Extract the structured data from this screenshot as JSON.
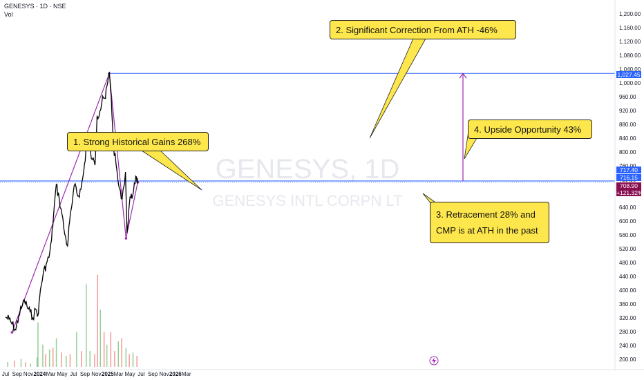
{
  "header": {
    "symbol": "GENESYS · 1D · NSE",
    "vol_label": "Vol"
  },
  "watermark": {
    "ticker": "GENESYS, 1D",
    "name": "GENESYS INTL CORPN LT"
  },
  "colors": {
    "price_line": "#000000",
    "trend_line": "#9c27b0",
    "hline": "#2962ff",
    "callout_bg": "#fde74c",
    "vol_up": "#4caf50",
    "vol_down": "#ef5350",
    "last_tag": "#880e4f",
    "blue_tag": "#2962ff"
  },
  "annotations": {
    "a1": "1. Strong Historical Gains 268%",
    "a2": "2. Significant Correction From ATH  -46%",
    "a3_line1": "3. Retracement  28% and",
    "a3_line2": "CMP is at ATH in the past",
    "a4": "4. Upside Opportunity 43%"
  },
  "price_tags": {
    "ath": "1,027.45",
    "t1": "717.40",
    "t2": "716.15",
    "last": "708.90",
    "change": "+121.32%"
  },
  "chart_data": {
    "type": "line",
    "y_axis_ticks": [
      1200,
      1160,
      1120,
      1080,
      1040,
      1000,
      960,
      920,
      880,
      840,
      800,
      760,
      720,
      680,
      640,
      600,
      560,
      520,
      480,
      440,
      400,
      360,
      320,
      280,
      240,
      200
    ],
    "y_tick_labels": [
      "1,200.00",
      "1,160.00",
      "1,120.00",
      "1,080.00",
      "1,040.00",
      "1,000.00",
      "960.00",
      "920.00",
      "880.00",
      "840.00",
      "800.00",
      "760.00",
      "720.00",
      "680.00",
      "640.00",
      "600.00",
      "560.00",
      "520.00",
      "480.00",
      "440.00",
      "400.00",
      "360.00",
      "320.00",
      "280.00",
      "240.00",
      "200.00"
    ],
    "ylim": [
      190,
      1225
    ],
    "x_tick_labels": [
      "Jul",
      "Sep",
      "Nov",
      "2024",
      "Mar",
      "May",
      "Jul",
      "Sep",
      "Nov",
      "2025",
      "Mar",
      "May",
      "Jul",
      "Sep",
      "Nov",
      "2026",
      "Mar"
    ],
    "series": [
      {
        "x": [
          "2023-07-01",
          "2023-07-20",
          "2023-08-05",
          "2023-08-25",
          "2023-09-10",
          "2023-09-25",
          "2023-10-10",
          "2023-10-25",
          "2023-11-10",
          "2023-11-25",
          "2023-12-10",
          "2023-12-25",
          "2024-01-05",
          "2024-01-20",
          "2024-02-05",
          "2024-02-20",
          "2024-03-05",
          "2024-03-15",
          "2024-03-30",
          "2024-04-15",
          "2024-04-30",
          "2024-05-15",
          "2024-05-30",
          "2024-06-10",
          "2024-06-25",
          "2024-07-10",
          "2024-07-25",
          "2024-08-10",
          "2024-08-25",
          "2024-09-10",
          "2024-09-25",
          "2024-10-10",
          "2024-10-25",
          "2024-11-05",
          "2024-11-20",
          "2024-12-05",
          "2024-12-20",
          "2025-01-01",
          "2025-01-10",
          "2025-01-20",
          "2025-02-01",
          "2025-02-15",
          "2025-03-01",
          "2025-03-15",
          "2025-03-30",
          "2025-04-07",
          "2025-04-15",
          "2025-04-25",
          "2025-05-05",
          "2025-05-15",
          "2025-05-25",
          "2025-06-05",
          "2025-06-12"
        ],
        "values": [
          322,
          316,
          302,
          285,
          325,
          348,
          372,
          352,
          338,
          320,
          345,
          332,
          402,
          448,
          475,
          495,
          545,
          612,
          705,
          665,
          620,
          562,
          528,
          598,
          655,
          708,
          672,
          692,
          742,
          825,
          808,
          778,
          762,
          905,
          918,
          962,
          955,
          1000,
          1030,
          962,
          820,
          765,
          705,
          665,
          702,
          742,
          565,
          632,
          668,
          672,
          712,
          728,
          709
        ]
      }
    ],
    "annotation_lines": {
      "gain_start": [
        "2023-08-05",
        278
      ],
      "ath": [
        "2025-01-10",
        1027.45
      ],
      "correction_low": [
        "2025-04-10",
        550
      ],
      "retrace_end": [
        "2025-06-12",
        712
      ],
      "hline_ath": 1027.45,
      "hline_cmp": 716.15,
      "upside_arrow_from": 716.15,
      "upside_arrow_to": 1027.45
    },
    "volume": [
      {
        "x": "2023-07-10",
        "v": 0.03,
        "up": true
      },
      {
        "x": "2023-08-15",
        "v": 0.04,
        "up": false
      },
      {
        "x": "2023-09-20",
        "v": 0.05,
        "up": true
      },
      {
        "x": "2023-10-15",
        "v": 0.03,
        "up": false
      },
      {
        "x": "2023-11-10",
        "v": 0.02,
        "up": true
      },
      {
        "x": "2023-12-15",
        "v": 0.06,
        "up": true
      },
      {
        "x": "2023-12-20",
        "v": 0.28,
        "up": true
      },
      {
        "x": "2024-01-15",
        "v": 0.14,
        "up": true
      },
      {
        "x": "2024-01-30",
        "v": 0.08,
        "up": false
      },
      {
        "x": "2024-02-20",
        "v": 0.11,
        "up": true
      },
      {
        "x": "2024-03-10",
        "v": 0.12,
        "up": false
      },
      {
        "x": "2024-03-28",
        "v": 0.18,
        "up": true
      },
      {
        "x": "2024-04-25",
        "v": 0.09,
        "up": false
      },
      {
        "x": "2024-05-20",
        "v": 0.07,
        "up": true
      },
      {
        "x": "2024-06-10",
        "v": 0.08,
        "up": false
      },
      {
        "x": "2024-07-15",
        "v": 0.22,
        "up": true
      },
      {
        "x": "2024-08-10",
        "v": 0.1,
        "up": false
      },
      {
        "x": "2024-09-05",
        "v": 0.52,
        "up": true
      },
      {
        "x": "2024-09-25",
        "v": 0.1,
        "up": true
      },
      {
        "x": "2024-10-20",
        "v": 0.08,
        "up": false
      },
      {
        "x": "2024-11-05",
        "v": 0.58,
        "up": false
      },
      {
        "x": "2024-11-20",
        "v": 0.36,
        "up": true
      },
      {
        "x": "2024-12-10",
        "v": 0.22,
        "up": false
      },
      {
        "x": "2024-12-25",
        "v": 0.14,
        "up": true
      },
      {
        "x": "2025-01-15",
        "v": 0.22,
        "up": false
      },
      {
        "x": "2025-02-05",
        "v": 0.1,
        "up": false
      },
      {
        "x": "2025-02-25",
        "v": 0.16,
        "up": true
      },
      {
        "x": "2025-03-15",
        "v": 0.18,
        "up": false
      },
      {
        "x": "2025-04-07",
        "v": 0.12,
        "up": true
      },
      {
        "x": "2025-04-25",
        "v": 0.08,
        "up": false
      },
      {
        "x": "2025-05-15",
        "v": 0.09,
        "up": true
      },
      {
        "x": "2025-06-05",
        "v": 0.07,
        "up": false
      }
    ]
  }
}
